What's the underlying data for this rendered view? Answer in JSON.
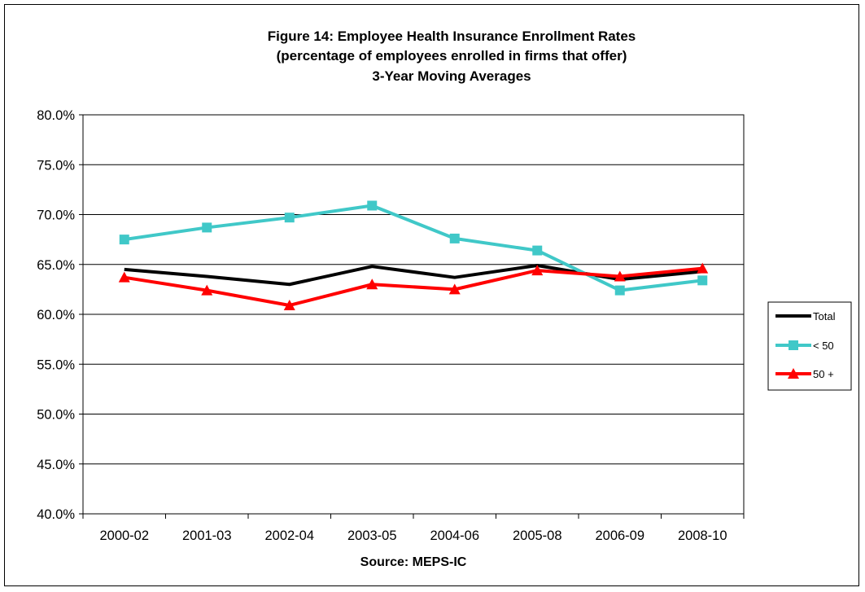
{
  "chart_data": {
    "type": "line",
    "title_lines": [
      "Figure 14:  Employee Health Insurance Enrollment Rates",
      "(percentage of employees enrolled in firms that offer)",
      "3-Year Moving Averages"
    ],
    "xlabel": "Source: MEPS-IC",
    "ylabel": "",
    "categories": [
      "2000-02",
      "2001-03",
      "2002-04",
      "2003-05",
      "2004-06",
      "2005-08",
      "2006-09",
      "2008-10"
    ],
    "ylim": [
      0.4,
      0.8
    ],
    "yticks": [
      "40.0%",
      "45.0%",
      "50.0%",
      "55.0%",
      "60.0%",
      "65.0%",
      "70.0%",
      "75.0%",
      "80.0%"
    ],
    "grid": "horizontal",
    "legend_position": "right",
    "series": [
      {
        "name": "Total",
        "color": "#000000",
        "marker": "none",
        "values": [
          0.645,
          0.638,
          0.63,
          0.648,
          0.637,
          0.649,
          0.635,
          0.643
        ]
      },
      {
        "name": "< 50",
        "color": "#40C8C8",
        "marker": "square",
        "values": [
          0.675,
          0.687,
          0.697,
          0.709,
          0.676,
          0.664,
          0.624,
          0.634
        ]
      },
      {
        "name": "50 +",
        "color": "#FF0000",
        "marker": "triangle",
        "values": [
          0.637,
          0.624,
          0.609,
          0.63,
          0.625,
          0.644,
          0.638,
          0.646
        ]
      }
    ]
  }
}
